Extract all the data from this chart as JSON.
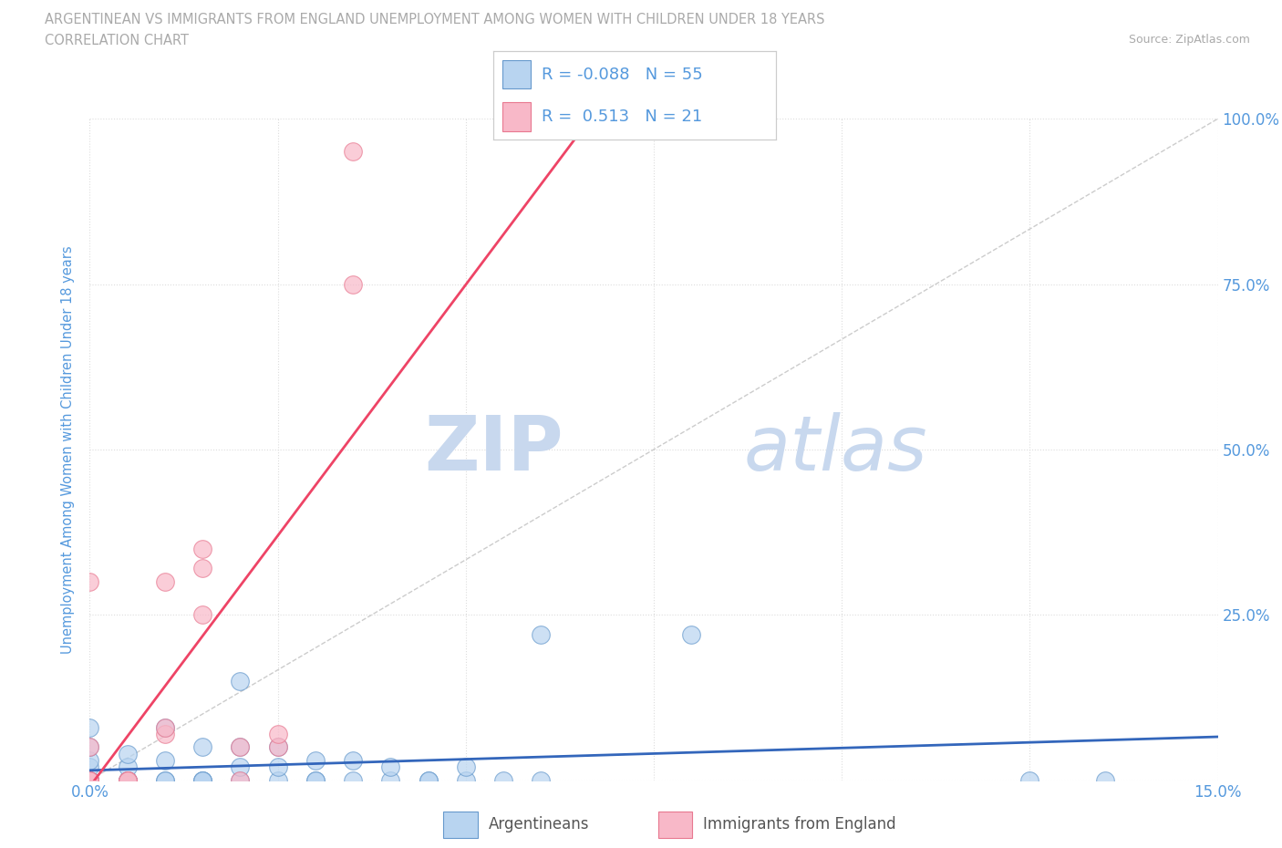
{
  "title_line1": "ARGENTINEAN VS IMMIGRANTS FROM ENGLAND UNEMPLOYMENT AMONG WOMEN WITH CHILDREN UNDER 18 YEARS",
  "title_line2": "CORRELATION CHART",
  "source": "Source: ZipAtlas.com",
  "ylabel": "Unemployment Among Women with Children Under 18 years",
  "xlim": [
    0.0,
    15.0
  ],
  "ylim": [
    0.0,
    100.0
  ],
  "xticks": [
    0.0,
    2.5,
    5.0,
    7.5,
    10.0,
    12.5,
    15.0
  ],
  "yticks": [
    0.0,
    25.0,
    50.0,
    75.0,
    100.0
  ],
  "watermark_Z": "ZIP",
  "watermark_atlas": "atlas",
  "argentineans_R": -0.088,
  "argentineans_N": 55,
  "england_R": 0.513,
  "england_N": 21,
  "blue_marker_face": "#b8d4f0",
  "blue_marker_edge": "#6699cc",
  "pink_marker_face": "#f8b8c8",
  "pink_marker_edge": "#e87890",
  "blue_line_color": "#3366bb",
  "pink_line_color": "#ee4466",
  "diag_line_color": "#cccccc",
  "title_color": "#aaaaaa",
  "axis_label_color": "#5599dd",
  "tick_label_color": "#5599dd",
  "argentineans_x": [
    0.0,
    0.0,
    0.0,
    0.0,
    0.0,
    0.0,
    0.0,
    0.0,
    0.0,
    0.0,
    0.0,
    0.0,
    0.0,
    0.0,
    0.0,
    0.0,
    0.0,
    0.5,
    0.5,
    0.5,
    0.5,
    0.5,
    0.5,
    1.0,
    1.0,
    1.0,
    1.0,
    1.5,
    1.5,
    1.5,
    1.5,
    2.0,
    2.0,
    2.0,
    2.0,
    2.5,
    2.5,
    2.5,
    3.0,
    3.0,
    3.0,
    3.5,
    3.5,
    4.0,
    4.0,
    4.5,
    4.5,
    5.0,
    5.0,
    5.5,
    6.0,
    6.0,
    8.0,
    12.5,
    13.5
  ],
  "argentineans_y": [
    0.0,
    0.0,
    0.0,
    0.0,
    0.0,
    0.0,
    0.0,
    0.0,
    0.0,
    0.0,
    0.0,
    0.0,
    0.0,
    2.0,
    3.0,
    5.0,
    8.0,
    0.0,
    0.0,
    0.0,
    0.0,
    2.0,
    4.0,
    0.0,
    0.0,
    3.0,
    8.0,
    0.0,
    0.0,
    0.0,
    5.0,
    0.0,
    2.0,
    5.0,
    15.0,
    0.0,
    2.0,
    5.0,
    0.0,
    0.0,
    3.0,
    0.0,
    3.0,
    0.0,
    2.0,
    0.0,
    0.0,
    0.0,
    2.0,
    0.0,
    0.0,
    22.0,
    22.0,
    0.0,
    0.0
  ],
  "england_x": [
    0.0,
    0.0,
    0.0,
    0.0,
    0.0,
    0.0,
    0.5,
    0.5,
    0.5,
    1.0,
    1.0,
    1.5,
    1.5,
    1.5,
    2.0,
    2.0,
    2.5,
    2.5,
    3.5,
    3.5,
    1.0
  ],
  "england_y": [
    0.0,
    0.0,
    0.0,
    0.0,
    5.0,
    30.0,
    0.0,
    0.0,
    0.0,
    7.0,
    8.0,
    25.0,
    32.0,
    35.0,
    0.0,
    5.0,
    5.0,
    7.0,
    95.0,
    75.0,
    30.0
  ]
}
